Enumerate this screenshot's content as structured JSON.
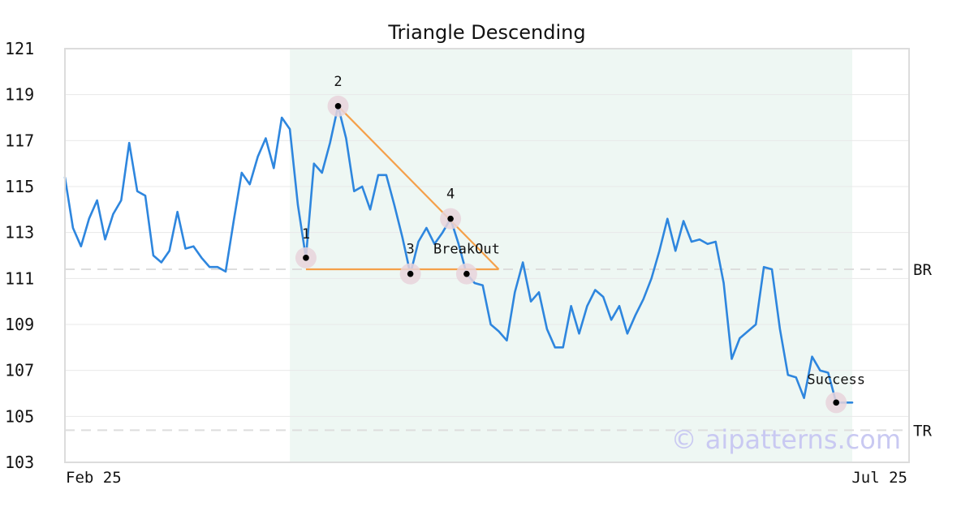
{
  "chart_data": {
    "type": "line",
    "title": "Triangle Descending",
    "xlabel": "",
    "ylabel": "",
    "ylim": [
      103,
      121
    ],
    "yticks": [
      103,
      105,
      107,
      109,
      111,
      113,
      115,
      117,
      119,
      121
    ],
    "x_tick_labels": [
      "Feb 25",
      "Jul 25"
    ],
    "grid": "horizontal",
    "watermark": "© aipatterns.com",
    "colors": {
      "line": "#2e86de",
      "triangle": "#f5a04a",
      "highlight": "#eef7f3",
      "marker_halo": "#e8d3da",
      "reference": "#dddddd"
    },
    "series": [
      {
        "values": [
          115.4,
          113.2,
          112.4,
          113.6,
          114.4,
          112.7,
          113.8,
          114.4,
          116.9,
          114.8,
          114.6,
          112.0,
          111.7,
          112.2,
          113.9,
          112.3,
          112.4,
          111.9,
          111.5,
          111.5,
          111.3,
          113.5,
          115.6,
          115.1,
          116.3,
          117.1,
          115.8,
          118.0,
          117.5,
          114.2,
          111.9,
          116.0,
          115.6,
          116.9,
          118.5,
          117.1,
          114.8,
          115.0,
          114.0,
          115.5,
          115.5,
          114.2,
          112.8,
          111.2,
          112.6,
          113.2,
          112.5,
          113.0,
          113.6,
          112.5,
          111.2,
          110.8,
          110.7,
          109.0,
          108.7,
          108.3,
          110.4,
          111.7,
          110.0,
          110.4,
          108.8,
          108.0,
          108.0,
          109.8,
          108.6,
          109.8,
          110.5,
          110.2,
          109.2,
          109.8,
          108.6,
          109.4,
          110.1,
          111.0,
          112.2,
          113.6,
          112.2,
          113.5,
          112.6,
          112.7,
          112.5,
          112.6,
          110.8,
          107.5,
          108.4,
          108.7,
          109.0,
          111.5,
          111.4,
          108.8,
          106.8,
          106.7,
          105.8,
          107.6,
          107.0,
          106.9,
          105.6,
          105.6,
          105.6
        ]
      }
    ],
    "highlight_range": {
      "start_index": 28,
      "end_index": 98
    },
    "triangle": {
      "lines": [
        {
          "from": {
            "index": 30,
            "value": 111.4
          },
          "to": {
            "index": 54,
            "value": 111.4
          }
        },
        {
          "from": {
            "index": 34,
            "value": 118.5
          },
          "to": {
            "index": 54,
            "value": 111.4
          }
        }
      ]
    },
    "points": [
      {
        "label": "1",
        "index": 30,
        "value": 111.9
      },
      {
        "label": "2",
        "index": 34,
        "value": 118.5
      },
      {
        "label": "3",
        "index": 43,
        "value": 111.2
      },
      {
        "label": "4",
        "index": 48,
        "value": 113.6
      },
      {
        "label": "BreakOut",
        "index": 50,
        "value": 111.2
      },
      {
        "label": "Success",
        "index": 96,
        "value": 105.6
      }
    ],
    "reference_lines": [
      {
        "label": "BR",
        "value": 111.4
      },
      {
        "label": "TR",
        "value": 104.4
      }
    ]
  }
}
